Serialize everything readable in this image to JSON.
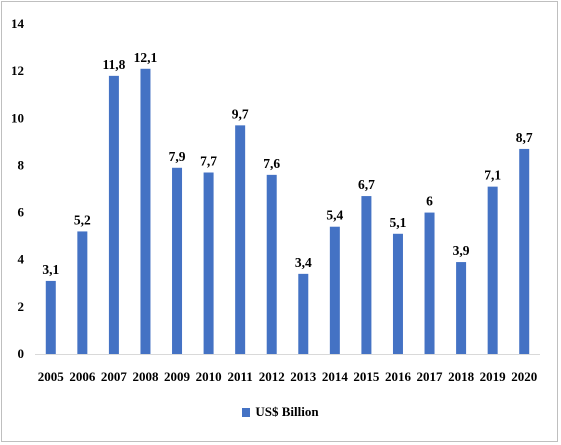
{
  "chart_data": {
    "type": "bar",
    "title": "",
    "xlabel": "",
    "ylabel": "",
    "ylim": [
      0,
      14
    ],
    "yticks": [
      0,
      2,
      4,
      6,
      8,
      10,
      12,
      14
    ],
    "grid": false,
    "legend_position": "bottom",
    "categories": [
      "2005",
      "2006",
      "2007",
      "2008",
      "2009",
      "2010",
      "2011",
      "2012",
      "2013",
      "2014",
      "2015",
      "2016",
      "2017",
      "2018",
      "2019",
      "2020"
    ],
    "series": [
      {
        "name": "US$ Billion",
        "color": "#4472c4",
        "values": [
          3.1,
          5.2,
          11.8,
          12.1,
          7.9,
          7.7,
          9.7,
          7.6,
          3.4,
          5.4,
          6.7,
          5.1,
          6,
          3.9,
          7.1,
          8.7
        ],
        "labels": [
          "3,1",
          "5,2",
          "11,8",
          "12,1",
          "7,9",
          "7,7",
          "9,7",
          "7,6",
          "3,4",
          "5,4",
          "6,7",
          "5,1",
          "6",
          "3,9",
          "7,1",
          "8,7"
        ]
      }
    ]
  }
}
